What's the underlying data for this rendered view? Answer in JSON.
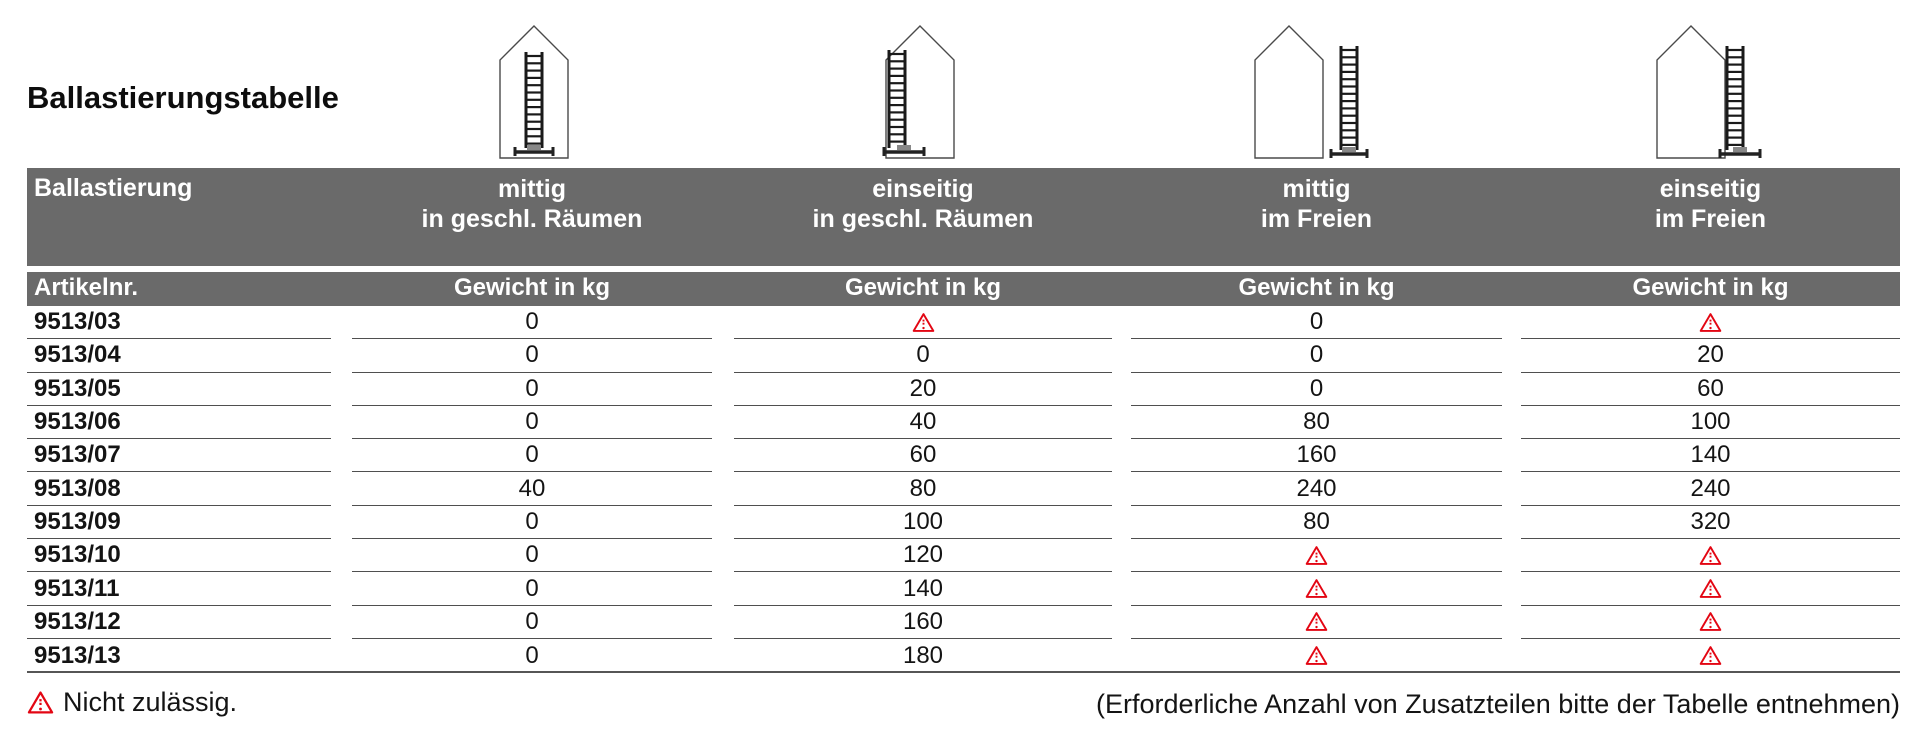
{
  "page": {
    "title": "Ballastierungstabelle",
    "footer_note_left": "Nicht zulässig.",
    "footer_note_right": "(Erforderliche Anzahl von Zusatzteilen bitte der Tabelle entnehmen)"
  },
  "colors": {
    "header_bg": "#6a6a6a",
    "header_text": "#ffffff",
    "warning_red": "#e30613",
    "row_line": "#4f4f4f",
    "text": "#141414"
  },
  "icons": [
    {
      "name": "house-ladder-centered-indoor-icon",
      "meaning": "mittig in geschl. Räumen"
    },
    {
      "name": "house-ladder-onesided-indoor-icon",
      "meaning": "einseitig in geschl. Räumen"
    },
    {
      "name": "house-ladder-centered-outdoor-icon",
      "meaning": "mittig im Freien"
    },
    {
      "name": "house-ladder-onesided-outdoor-icon",
      "meaning": "einseitig im Freien"
    }
  ],
  "table": {
    "group_header": {
      "col0": "Ballastierung",
      "cols": [
        {
          "line1": "mittig",
          "line2": "in geschl. Räumen"
        },
        {
          "line1": "einseitig",
          "line2": "in geschl. Räumen"
        },
        {
          "line1": "mittig",
          "line2": "im Freien"
        },
        {
          "line1": "einseitig",
          "line2": "im Freien"
        }
      ]
    },
    "sub_header": {
      "col0": "Artikelnr.",
      "weight_label": "Gewicht in kg"
    },
    "warning_symbol_meaning": "Nicht zulässig.",
    "rows": [
      {
        "artikelnr": "9513/03",
        "values": [
          "0",
          "warning",
          "0",
          "warning"
        ]
      },
      {
        "artikelnr": "9513/04",
        "values": [
          "0",
          "0",
          "0",
          "20"
        ]
      },
      {
        "artikelnr": "9513/05",
        "values": [
          "0",
          "20",
          "0",
          "60"
        ]
      },
      {
        "artikelnr": "9513/06",
        "values": [
          "0",
          "40",
          "80",
          "100"
        ]
      },
      {
        "artikelnr": "9513/07",
        "values": [
          "0",
          "60",
          "160",
          "140"
        ]
      },
      {
        "artikelnr": "9513/08",
        "values": [
          "40",
          "80",
          "240",
          "240"
        ]
      },
      {
        "artikelnr": "9513/09",
        "values": [
          "0",
          "100",
          "80",
          "320"
        ]
      },
      {
        "artikelnr": "9513/10",
        "values": [
          "0",
          "120",
          "warning",
          "warning"
        ]
      },
      {
        "artikelnr": "9513/11",
        "values": [
          "0",
          "140",
          "warning",
          "warning"
        ]
      },
      {
        "artikelnr": "9513/12",
        "values": [
          "0",
          "160",
          "warning",
          "warning"
        ]
      },
      {
        "artikelnr": "9513/13",
        "values": [
          "0",
          "180",
          "warning",
          "warning"
        ]
      }
    ]
  }
}
